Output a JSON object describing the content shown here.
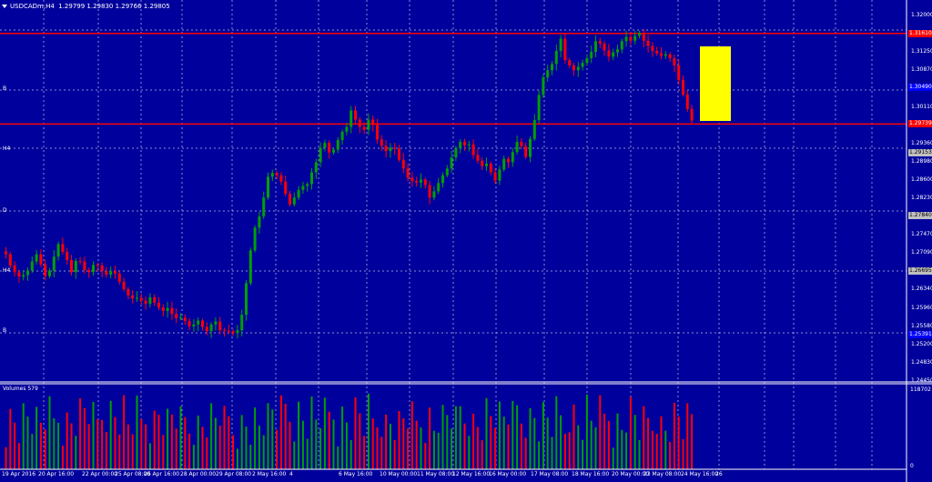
{
  "header": {
    "symbol": "USDCADm,H4",
    "ohlc": "1.29799 1.29830 1.29766 1.29805"
  },
  "side_tags": [
    "B",
    "H4",
    "D",
    "H4",
    "B"
  ],
  "price_axis": {
    "labels": [
      "1.32000",
      "1.31250",
      "1.30870",
      "1.30110",
      "1.29360",
      "1.28980",
      "1.28600",
      "1.28230",
      "1.27850",
      "1.27470",
      "1.27090",
      "1.26340",
      "1.25960",
      "1.25580",
      "1.25200",
      "1.24830",
      "1.24450"
    ],
    "highlighted": [
      {
        "text": "1.31610",
        "bg": "#ff0000",
        "fg": "#ffffff"
      },
      {
        "text": "1.30490",
        "bg": "#0000ff",
        "fg": "#ffffff"
      },
      {
        "text": "1.29739",
        "bg": "#ff0000",
        "fg": "#ffffff"
      },
      {
        "text": "1.29153",
        "bg": "#c0c0c0",
        "fg": "#000000"
      },
      {
        "text": "1.27840",
        "bg": "#c0c0c0",
        "fg": "#000000"
      },
      {
        "text": "1.26695",
        "bg": "#c0c0c0",
        "fg": "#000000"
      },
      {
        "text": "1.25391",
        "bg": "#0000ff",
        "fg": "#ffffff"
      }
    ]
  },
  "volume_panel": {
    "label": "Volumes 579",
    "axis_top": "118702",
    "axis_bottom": "0"
  },
  "date_axis": [
    "19 Apr 2016",
    "20 Apr 16:00",
    "22 Apr 00:00",
    "25 Apr 08:00",
    "26 Apr 16:00",
    "28 Apr 00:00",
    "29 Apr 08:00",
    "2 May 16:00",
    "4",
    "6 May 16:00",
    "10 May 00:00",
    "11 May 08:00",
    "12 May 16:00",
    "16 May 00:00",
    "17 May 08:00",
    "18 May 16:00",
    "20 May 00:00",
    "23 May 08:00",
    "24 May 16:00",
    "26"
  ],
  "colors": {
    "background": "#00009c",
    "bull": "#00a000",
    "bear": "#ff0000",
    "grid": "#ffffff",
    "hline": "#ff0000",
    "highlight_box": "#ffff00"
  },
  "chart_data": {
    "type": "candlestick",
    "timeframe": "H4",
    "ylim": [
      1.2445,
      1.322
    ],
    "resistance": 1.3161,
    "support": 1.29739,
    "closes": [
      1.2705,
      1.2682,
      1.2668,
      1.2659,
      1.2662,
      1.2671,
      1.269,
      1.2705,
      1.2684,
      1.266,
      1.2671,
      1.27,
      1.2726,
      1.271,
      1.2693,
      1.2668,
      1.2691,
      1.269,
      1.2672,
      1.2668,
      1.2683,
      1.2682,
      1.267,
      1.2663,
      1.267,
      1.2665,
      1.2648,
      1.2633,
      1.262,
      1.2614,
      1.2615,
      1.2609,
      1.2603,
      1.2616,
      1.2605,
      1.2595,
      1.2588,
      1.2594,
      1.2582,
      1.2573,
      1.2574,
      1.2567,
      1.2556,
      1.256,
      1.2568,
      1.2555,
      1.2546,
      1.256,
      1.2566,
      1.2548,
      1.2547,
      1.2546,
      1.2542,
      1.2548,
      1.258,
      1.2645,
      1.2713,
      1.276,
      1.2783,
      1.2822,
      1.2865,
      1.2873,
      1.2868,
      1.2855,
      1.283,
      1.2808,
      1.2822,
      1.2838,
      1.2846,
      1.285,
      1.2874,
      1.2895,
      1.2925,
      1.2935,
      1.2915,
      1.2921,
      1.2941,
      1.2958,
      1.2968,
      1.3002,
      1.2983,
      1.2968,
      1.2962,
      1.2983,
      1.2972,
      1.2942,
      1.2929,
      1.2918,
      1.2925,
      1.2923,
      1.29,
      1.2882,
      1.2863,
      1.2856,
      1.2853,
      1.2859,
      1.2848,
      1.2822,
      1.2835,
      1.2852,
      1.2868,
      1.2882,
      1.2905,
      1.2924,
      1.2937,
      1.293,
      1.2932,
      1.291,
      1.2898,
      1.2887,
      1.2892,
      1.2874,
      1.2857,
      1.288,
      1.2902,
      1.2895,
      1.2916,
      1.2937,
      1.2928,
      1.2906,
      1.2943,
      1.2982,
      1.3034,
      1.307,
      1.3085,
      1.3098,
      1.3125,
      1.315,
      1.3106,
      1.3095,
      1.3085,
      1.3092,
      1.31,
      1.311,
      1.3123,
      1.3145,
      1.314,
      1.3126,
      1.3113,
      1.3122,
      1.3128,
      1.3145,
      1.3154,
      1.3146,
      1.3156,
      1.3162,
      1.3146,
      1.3135,
      1.3125,
      1.312,
      1.3115,
      1.3118,
      1.311,
      1.3095,
      1.3065,
      1.3035,
      1.3005,
      1.2981
    ]
  }
}
